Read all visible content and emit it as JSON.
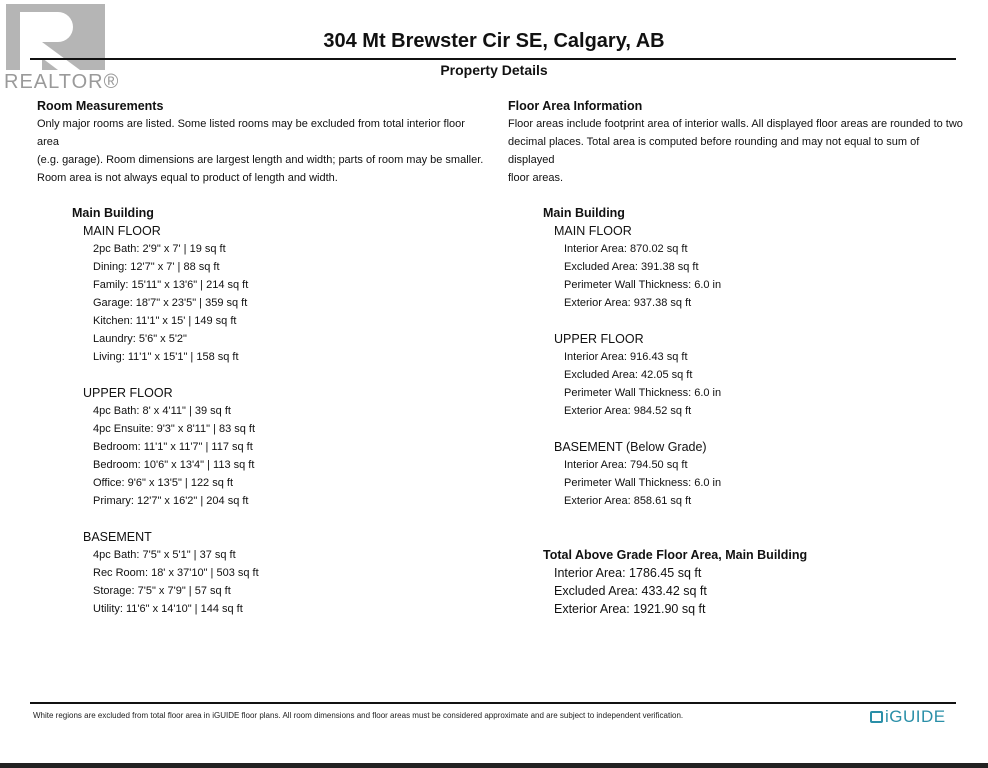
{
  "watermark": "REALTOR®",
  "title": "304 Mt Brewster Cir SE, Calgary, AB",
  "subtitle": "Property Details",
  "left": {
    "heading": "Room Measurements",
    "para": [
      "Only major rooms are listed. Some listed rooms may be excluded from total interior floor area",
      "(e.g. garage). Room dimensions are largest length and width; parts of room may be smaller.",
      "Room area is not always equal to product of length and width."
    ],
    "building": "Main Building",
    "floors": [
      {
        "name": "MAIN FLOOR",
        "items": [
          "2pc Bath: 2'9\" x 7' | 19 sq ft",
          "Dining: 12'7\" x 7' | 88 sq ft",
          "Family: 15'11\" x 13'6\" | 214 sq ft",
          "Garage: 18'7\" x 23'5\" | 359 sq ft",
          "Kitchen: 11'1\" x 15' | 149 sq ft",
          "Laundry: 5'6\" x 5'2\"",
          "Living: 11'1\" x 15'1\" | 158 sq ft"
        ]
      },
      {
        "name": "UPPER FLOOR",
        "items": [
          "4pc Bath: 8' x 4'11\" | 39 sq ft",
          "4pc Ensuite: 9'3\" x 8'11\" | 83 sq ft",
          "Bedroom: 11'1\" x 11'7\" | 117 sq ft",
          "Bedroom: 10'6\" x 13'4\" | 113 sq ft",
          "Office: 9'6\" x 13'5\" | 122 sq ft",
          "Primary: 12'7\" x 16'2\" | 204 sq ft"
        ]
      },
      {
        "name": "BASEMENT",
        "items": [
          "4pc Bath: 7'5\" x 5'1\" | 37 sq ft",
          "Rec Room: 18' x 37'10\" | 503 sq ft",
          "Storage: 7'5\" x 7'9\" | 57 sq ft",
          "Utility: 11'6\" x 14'10\" | 144 sq ft"
        ]
      }
    ]
  },
  "right": {
    "heading": "Floor Area Information",
    "para": [
      "Floor areas include footprint area of interior walls. All displayed floor areas are rounded to two",
      "decimal places. Total area is computed before rounding and may not equal to sum of displayed",
      "floor areas."
    ],
    "building": "Main Building",
    "floors": [
      {
        "name": "MAIN FLOOR",
        "items": [
          "Interior Area: 870.02 sq ft",
          "Excluded Area: 391.38 sq ft",
          "Perimeter Wall Thickness: 6.0 in",
          "Exterior Area: 937.38 sq ft"
        ]
      },
      {
        "name": "UPPER FLOOR",
        "items": [
          "Interior Area: 916.43 sq ft",
          "Excluded Area: 42.05 sq ft",
          "Perimeter Wall Thickness: 6.0 in",
          "Exterior Area: 984.52 sq ft"
        ]
      },
      {
        "name": "BASEMENT (Below Grade)",
        "items": [
          "Interior Area: 794.50 sq ft",
          "Perimeter Wall Thickness: 6.0 in",
          "Exterior Area: 858.61 sq ft"
        ]
      }
    ],
    "total": {
      "heading": "Total Above Grade Floor Area, Main Building",
      "items": [
        "Interior Area: 1786.45 sq ft",
        "Excluded Area: 433.42 sq ft",
        "Exterior Area: 1921.90 sq ft"
      ]
    }
  },
  "footer": {
    "note": "White regions are excluded from total floor area in iGUIDE floor plans. All room dimensions and floor areas must be considered approximate and are subject to independent verification.",
    "brand": "iGUIDE",
    "brand_color": "#2a8fa8"
  }
}
